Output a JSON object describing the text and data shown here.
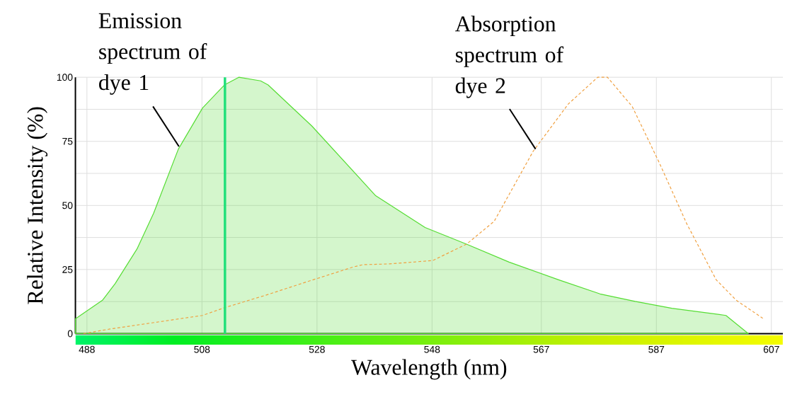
{
  "chart_data": {
    "type": "area",
    "xlabel": "Wavelength (nm)",
    "ylabel": "Relative Intensity (%)",
    "x": [
      486,
      490.7,
      492.9,
      496.7,
      499.6,
      503.9,
      508.1,
      511.9,
      514.4,
      518.2,
      519.5,
      527.1,
      538.2,
      546.8,
      554,
      561.4,
      570,
      577.2,
      583.3,
      589.7,
      599.1,
      603
    ],
    "series": [
      {
        "color": "#55dd33",
        "values": [
          5.8,
          13,
          19.5,
          33,
          47,
          72,
          88,
          97,
          100,
          98.6,
          97,
          81,
          53.8,
          41.4,
          34.9,
          27.9,
          21,
          15.5,
          12.6,
          9.9,
          7.1,
          0
        ]
      },
      {
        "type": "line",
        "color": "#f0a040",
        "line_style": "dashed",
        "x": [
          487.4,
          492,
          499.3,
          508.1,
          511.9,
          519.1,
          525.8,
          534.3,
          536,
          540.6,
          548.1,
          554,
          558.8,
          565.6,
          571.7,
          576.8,
          578.5,
          582.8,
          587.5,
          592.3,
          597.4,
          600.9,
          605.5
        ],
        "values": [
          0,
          1.8,
          4.2,
          7.1,
          10.1,
          15,
          19.9,
          26,
          26.9,
          27.2,
          28.5,
          34.9,
          43.8,
          71.2,
          89.6,
          100,
          100,
          88.6,
          66.7,
          42.8,
          21,
          13,
          6
        ]
      }
    ],
    "xlim": [
      486,
      609
    ],
    "ylim": [
      0,
      100
    ],
    "xticks": [
      488,
      508,
      528,
      548,
      567,
      587,
      607
    ],
    "yticks": [
      0,
      25,
      50,
      75,
      100
    ],
    "grid": true,
    "ref_lines": [
      {
        "axis": "x",
        "value": 512,
        "color": "#22e07a"
      }
    ],
    "annotations": [
      {
        "text": "Emission spectrum of dye 1",
        "x": 504,
        "y": 73
      },
      {
        "text": "Absorption spectrum of dye 2",
        "x": 566,
        "y": 72
      }
    ]
  }
}
